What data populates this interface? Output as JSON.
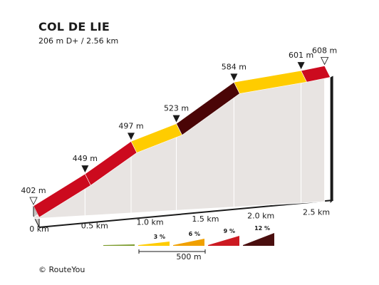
{
  "title": "COL DE LIE",
  "subtitle": "206 m D+ / 2.56 km",
  "copyright": "©  RouteYou",
  "chart_data": {
    "type": "area",
    "title": "COL DE LIE",
    "subtitle": "206 m D+ / 2.56 km",
    "x_unit": "km",
    "y_unit": "m",
    "xlim": [
      0,
      2.56
    ],
    "ylim": [
      402,
      608
    ],
    "points": [
      {
        "km": 0.0,
        "elev": 402,
        "label": "402 m",
        "marker": "start"
      },
      {
        "km": 0.45,
        "elev": 449,
        "label": "449 m",
        "marker": "filled"
      },
      {
        "km": 0.85,
        "elev": 497,
        "label": "497 m",
        "marker": "filled"
      },
      {
        "km": 1.25,
        "elev": 523,
        "label": "523 m",
        "marker": "filled"
      },
      {
        "km": 1.75,
        "elev": 584,
        "label": "584 m",
        "marker": "filled"
      },
      {
        "km": 2.35,
        "elev": 601,
        "label": "601 m",
        "marker": "filled"
      },
      {
        "km": 2.56,
        "elev": 608,
        "label": "608 m",
        "marker": "end"
      }
    ],
    "segments": [
      {
        "from": 0.0,
        "to": 0.45,
        "color": "#cc0a1e"
      },
      {
        "from": 0.45,
        "to": 0.85,
        "color": "#cc0a1e"
      },
      {
        "from": 0.85,
        "to": 1.25,
        "color": "#ffcc00"
      },
      {
        "from": 1.25,
        "to": 1.75,
        "color": "#4a0506"
      },
      {
        "from": 1.75,
        "to": 2.35,
        "color": "#ffcc00"
      },
      {
        "from": 2.35,
        "to": 2.56,
        "color": "#cc0a1e"
      }
    ],
    "x_ticks": [
      {
        "value": 0.0,
        "label": "0 km"
      },
      {
        "value": 0.5,
        "label": "0.5 km"
      },
      {
        "value": 1.0,
        "label": "1.0 km"
      },
      {
        "value": 1.5,
        "label": "1.5 km"
      },
      {
        "value": 2.0,
        "label": "2.0 km"
      },
      {
        "value": 2.5,
        "label": "2.5 km"
      }
    ],
    "legend": {
      "scale_label": "500 m",
      "items": [
        {
          "label": "",
          "color": "#7a9a2a"
        },
        {
          "label": "3 %",
          "color": "#ffcc00"
        },
        {
          "label": "6 %",
          "color": "#f0a000"
        },
        {
          "label": "9 %",
          "color": "#cc1a22"
        },
        {
          "label": "12 %",
          "color": "#4a0e0e"
        }
      ]
    }
  }
}
